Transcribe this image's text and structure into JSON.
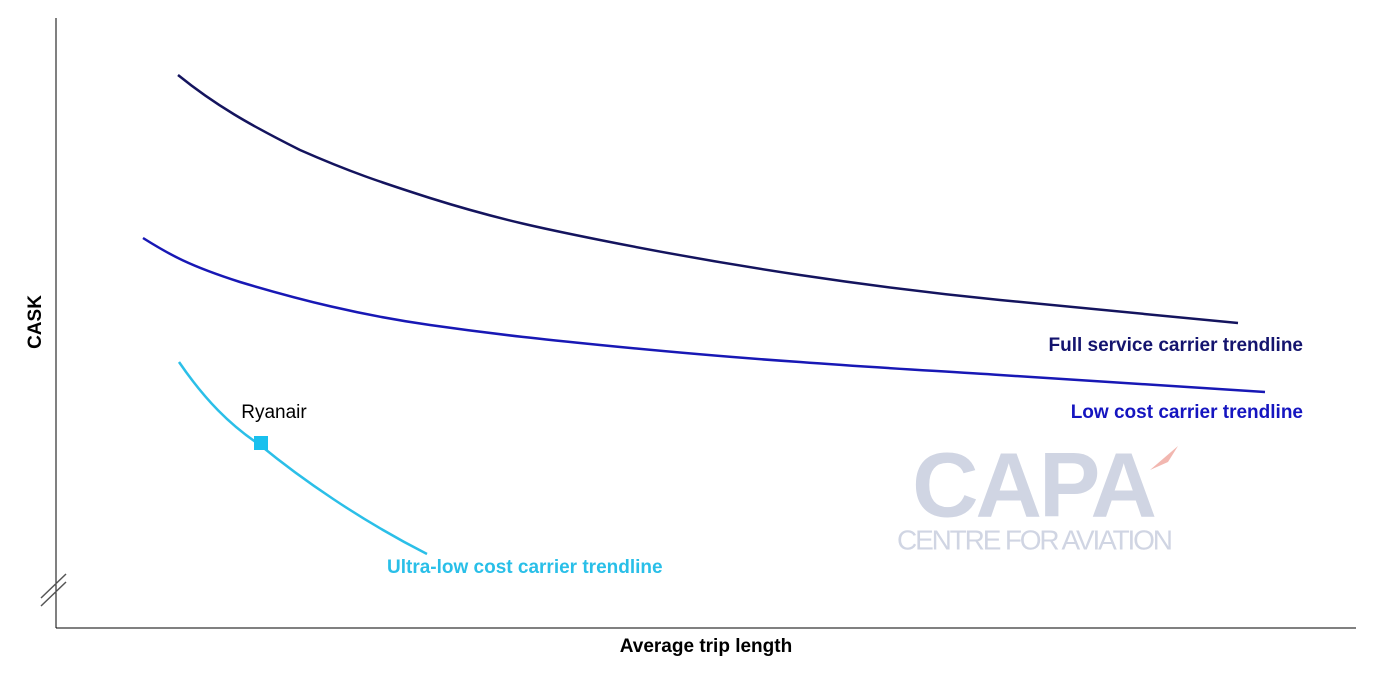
{
  "axes": {
    "y_label": "CASK",
    "x_label": "Average trip length"
  },
  "trendlines": [
    {
      "label": "Full service carrier trendline"
    },
    {
      "label": "Low cost carrier trendline"
    },
    {
      "label": "Ultra-low cost carrier trendline"
    }
  ],
  "points": [
    {
      "label": "Ryanair"
    }
  ],
  "watermark": {
    "logo": "CAPA",
    "tagline": "CENTRE FOR AVIATION"
  }
}
